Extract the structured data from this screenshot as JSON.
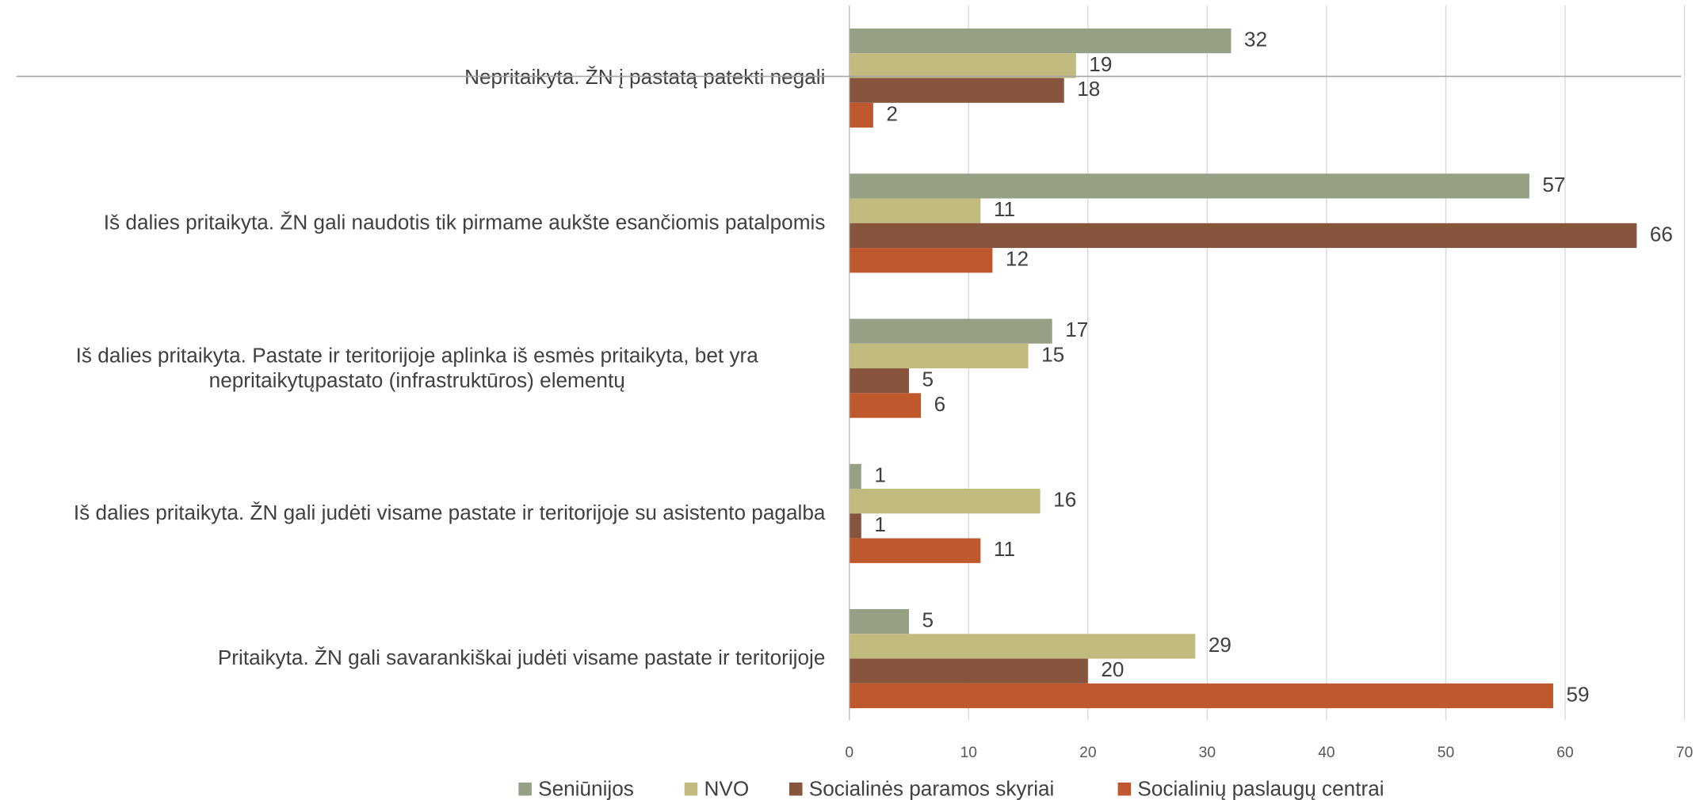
{
  "chart_data": {
    "type": "bar",
    "orientation": "horizontal",
    "categories": [
      "Nepritaikyta. ŽN į pastatą patekti negali",
      "Iš dalies pritaikyta. ŽN gali naudotis tik pirmame aukšte esančiomis patalpomis",
      "Iš dalies pritaikyta. Pastate ir teritorijoje aplinka iš esmės pritaikyta, bet yra nepritaikytųpastato (infrastruktūros) elementų",
      "Iš dalies pritaikyta. ŽN gali judėti visame pastate ir teritorijoje su asistento pagalba",
      "Pritaikyta. ŽN gali savarankiškai judėti visame pastate ir teritorijoje"
    ],
    "series": [
      {
        "name": "Seniūnijos",
        "color": "#96a085",
        "values": [
          32,
          57,
          17,
          1,
          5
        ]
      },
      {
        "name": "NVO",
        "color": "#c2bb7f",
        "values": [
          19,
          11,
          15,
          16,
          29
        ]
      },
      {
        "name": "Socialinės paramos skyriai",
        "color": "#87553d",
        "values": [
          18,
          66,
          5,
          1,
          20
        ]
      },
      {
        "name": "Socialinių paslaugų centrai",
        "color": "#c0582d",
        "values": [
          2,
          12,
          6,
          11,
          59
        ]
      }
    ],
    "xlim": [
      0,
      70
    ],
    "xticks": [
      0,
      10,
      20,
      30,
      40,
      50,
      60,
      70
    ],
    "grid": true,
    "legend": "bottom"
  }
}
